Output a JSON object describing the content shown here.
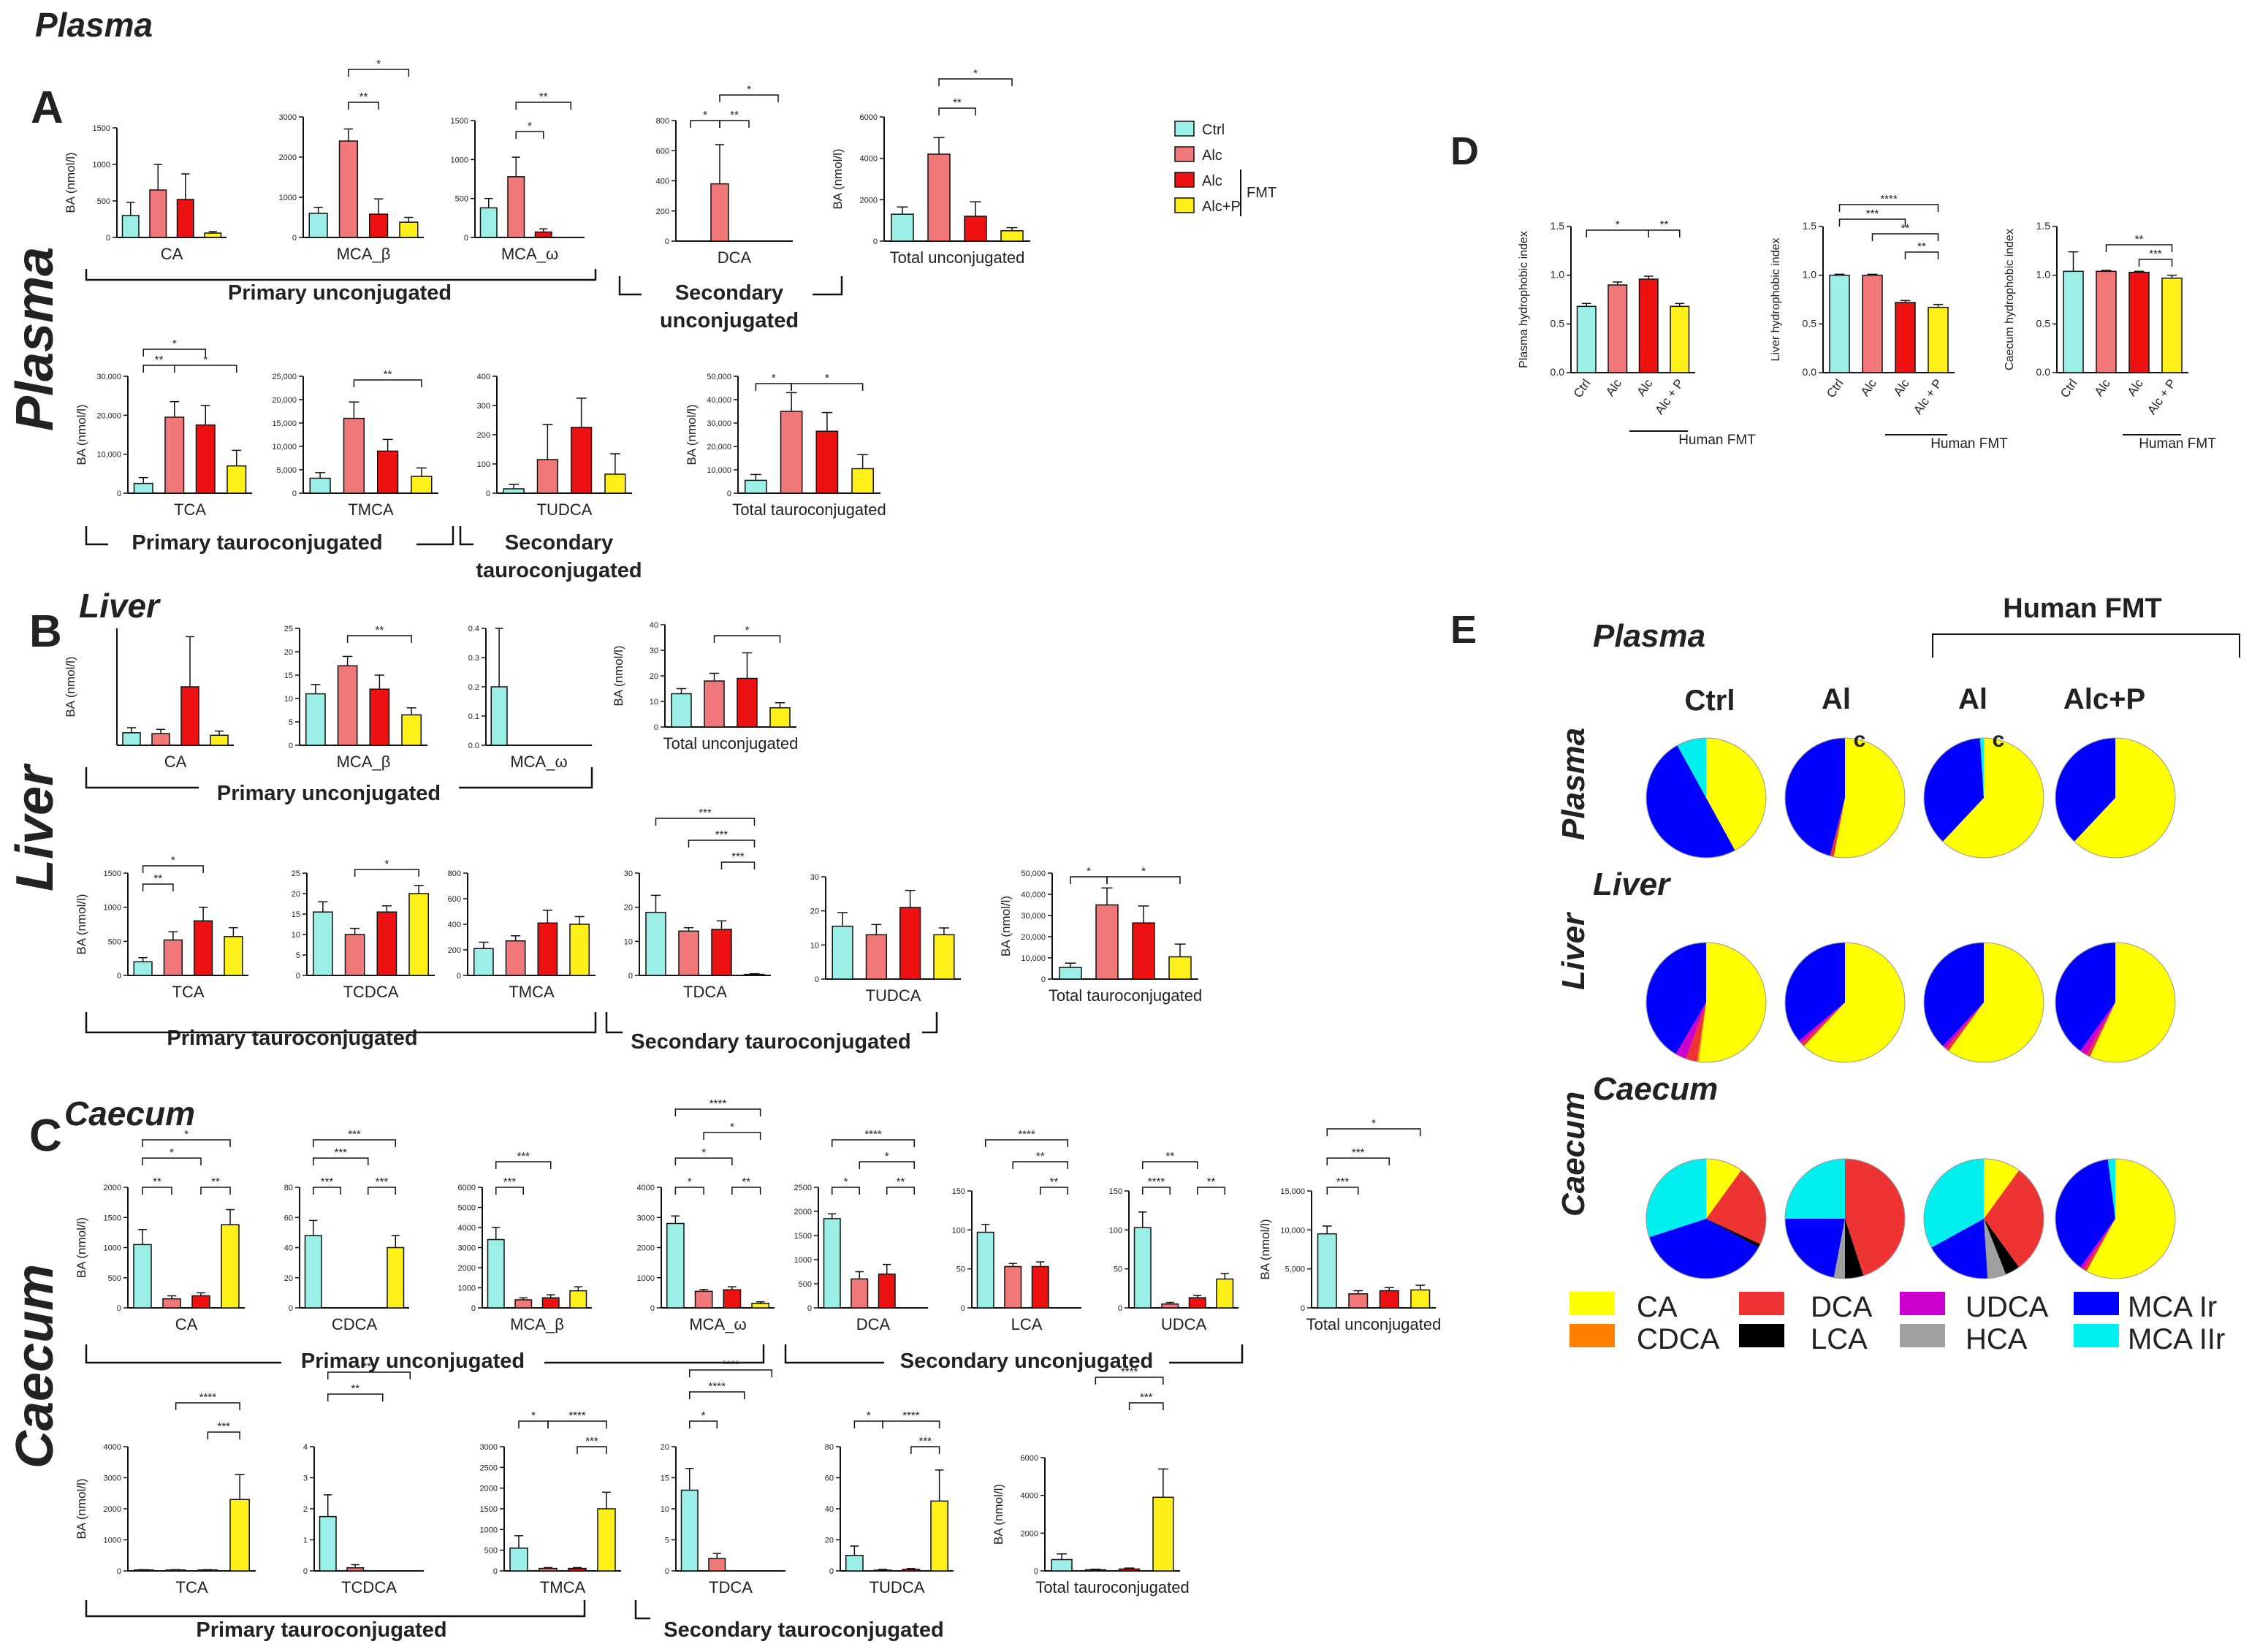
{
  "colors": {
    "Ctrl": "#9BEFE6",
    "Alc": "#F07878",
    "AlcFMT": "#EE1111",
    "AlcP": "#FFF01A",
    "axis": "#111111",
    "CA": "#FFFF00",
    "CDCA": "#FF8000",
    "DCA": "#EE3333",
    "LCA": "#000000",
    "UDCA": "#CC00CC",
    "HCA": "#A0A0A0",
    "MCAIr": "#0000FF",
    "MCAIIr": "#00F0F0"
  },
  "labels": {
    "top_title": "Plasma",
    "panel_A": "A",
    "panel_B": "B",
    "panel_C": "C",
    "panel_D": "D",
    "panel_E": "E",
    "side_plasma": "Plasma",
    "side_liver": "Liver",
    "side_caecum": "Caecum",
    "sub_liver": "Liver",
    "sub_caecum": "Caecum",
    "ylabel": "BA (nmol/l)",
    "legend_ctrl": "Ctrl",
    "legend_alc": "Alc",
    "legend_alc2": "Alc",
    "legend_alcp": "Alc+P",
    "legend_fmt": "FMT",
    "A_grp1": "Primary unconjugated",
    "A_grp2a": "Secondary",
    "A_grp2b": "unconjugated",
    "A_grp3": "Primary tauroconjugated",
    "A_grp4a": "Secondary",
    "A_grp4b": "tauroconjugated",
    "B_grp1": "Primary unconjugated",
    "B_grp2": "Primary tauroconjugated",
    "B_grp3": "Secondary tauroconjugated",
    "C_grp1": "Primary unconjugated",
    "C_grp2": "Secondary unconjugated",
    "C_grp3": "Primary tauroconjugated",
    "C_grp4": "Secondary tauroconjugated",
    "E_header": "Human FMT",
    "E_plasma": "Plasma",
    "E_liver": "Liver",
    "E_caecum": "Caecum",
    "E_side_plasma": "Plasma",
    "E_side_liver": "Liver",
    "E_side_caecum": "Caecum",
    "E_col_ctrl": "Ctrl",
    "E_col_al1": "Al",
    "E_col_al2": "Al",
    "E_col_alcp": "Alc+P",
    "E_c1": "c",
    "E_c2": "c",
    "D_fmt1": "Human FMT",
    "D_fmt2": "Human FMT",
    "D_fmt3": "Human FMT",
    "leg_CA": "CA",
    "leg_CDCA": "CDCA",
    "leg_DCA": "DCA",
    "leg_LCA": "LCA",
    "leg_UDCA": "UDCA",
    "leg_HCA": "HCA",
    "leg_MCAIr": "MCA Ir",
    "leg_MCAIIr": "MCA IIr"
  },
  "chart_data": {
    "type": "bar",
    "groups": [
      "Ctrl",
      "Alc",
      "Alc (FMT)",
      "Alc+P (FMT)"
    ],
    "panel_A_plasma": [
      {
        "title": "CA",
        "yticks": [
          "0",
          "500",
          "1000",
          "1500"
        ],
        "ymax": 1500,
        "values": [
          300,
          650,
          520,
          60
        ],
        "errors": [
          180,
          350,
          350,
          20
        ]
      },
      {
        "title": "MCA_β",
        "yticks": [
          "0",
          "1000",
          "2000",
          "3000"
        ],
        "ymax": 3000,
        "values": [
          600,
          2400,
          580,
          380
        ],
        "errors": [
          150,
          300,
          380,
          120
        ]
      },
      {
        "title": "MCA_ω",
        "yticks": [
          "0",
          "500",
          "1000",
          "1500"
        ],
        "ymax": 1500,
        "values": [
          380,
          780,
          70,
          0
        ],
        "errors": [
          120,
          250,
          40,
          0
        ]
      },
      {
        "title": "DCA",
        "yticks": [
          "0",
          "200",
          "400",
          "600",
          "800"
        ],
        "ymax": 800,
        "values": [
          0,
          380,
          0,
          0
        ],
        "errors": [
          0,
          260,
          0,
          0
        ]
      },
      {
        "title": "Total unconjugated",
        "yticks": [
          "0",
          "2000",
          "4000",
          "6000"
        ],
        "ymax": 6000,
        "values": [
          1300,
          4200,
          1200,
          500
        ],
        "errors": [
          350,
          800,
          700,
          150
        ]
      },
      {
        "title": "TCA",
        "yticks": [
          "0",
          "10,000",
          "20,000",
          "30,000"
        ],
        "ymax": 30000,
        "values": [
          2500,
          19500,
          17500,
          7000
        ],
        "errors": [
          1500,
          4000,
          5000,
          4000
        ]
      },
      {
        "title": "TMCA",
        "yticks": [
          "0",
          "5,000",
          "10,000",
          "15,000",
          "20,000",
          "25,000"
        ],
        "ymax": 25000,
        "values": [
          3200,
          16000,
          9000,
          3600
        ],
        "errors": [
          1200,
          3500,
          2500,
          1800
        ]
      },
      {
        "title": "TUDCA",
        "yticks": [
          "0",
          "100",
          "200",
          "300",
          "400"
        ],
        "ymax": 400,
        "values": [
          15,
          115,
          225,
          65
        ],
        "errors": [
          15,
          120,
          100,
          70
        ]
      },
      {
        "title": "Total tauroconjugated",
        "yticks": [
          "0",
          "10,000",
          "20,000",
          "30,000",
          "40,000",
          "50,000"
        ],
        "ymax": 50000,
        "values": [
          5500,
          35000,
          26500,
          10500
        ],
        "errors": [
          2500,
          8000,
          8000,
          6000
        ]
      }
    ],
    "panel_B_liver": [
      {
        "title": "CA",
        "yticks": [],
        "ymax": 14,
        "values": [
          1.5,
          1.4,
          7,
          1.2
        ],
        "errors": [
          0.6,
          0.5,
          6,
          0.5
        ]
      },
      {
        "title": "MCA_β",
        "yticks": [
          "0",
          "5",
          "10",
          "15",
          "20",
          "25"
        ],
        "ymax": 25,
        "values": [
          11,
          17,
          12,
          6.5
        ],
        "errors": [
          2,
          2,
          3,
          1.5
        ]
      },
      {
        "title": "MCA_ω",
        "yticks": [
          "0.0",
          "0.1",
          "0.2",
          "0.3",
          "0.4"
        ],
        "ymax": 0.4,
        "values": [
          0.2,
          0,
          0,
          0
        ],
        "errors": [
          0.2,
          0,
          0,
          0
        ]
      },
      {
        "title": "Total unconjugated",
        "yticks": [
          "0",
          "10",
          "20",
          "30",
          "40"
        ],
        "ymax": 40,
        "values": [
          13,
          18,
          19,
          7.5
        ],
        "errors": [
          2,
          3,
          10,
          2
        ]
      },
      {
        "title": "TCA",
        "yticks": [
          "0",
          "500",
          "1000",
          "1500"
        ],
        "ymax": 1500,
        "values": [
          200,
          520,
          800,
          570
        ],
        "errors": [
          60,
          120,
          200,
          130
        ]
      },
      {
        "title": "TCDCA",
        "yticks": [
          "0",
          "5",
          "10",
          "15",
          "20",
          "25"
        ],
        "ymax": 25,
        "values": [
          15.5,
          10,
          15.5,
          20
        ],
        "errors": [
          2.5,
          1.5,
          1.5,
          2
        ]
      },
      {
        "title": "TMCA",
        "yticks": [
          "0",
          "200",
          "400",
          "600",
          "800"
        ],
        "ymax": 800,
        "values": [
          210,
          270,
          410,
          400
        ],
        "errors": [
          50,
          40,
          100,
          60
        ]
      },
      {
        "title": "TDCA",
        "yticks": [
          "0",
          "10",
          "20",
          "30"
        ],
        "ymax": 30,
        "values": [
          18.5,
          13,
          13.5,
          0.3
        ],
        "errors": [
          5,
          1,
          2.5,
          0.2
        ]
      },
      {
        "title": "TUDCA",
        "yticks": [
          "0",
          "10",
          "20",
          "30"
        ],
        "ymax": 30,
        "values": [
          15.5,
          13,
          21,
          13
        ],
        "errors": [
          4,
          3,
          5,
          2
        ]
      },
      {
        "title": "Total tauroconjugated",
        "yticks": [
          "0",
          "10,000",
          "20,000",
          "30,000",
          "40,000",
          "50,000"
        ],
        "ymax": 50000,
        "values": [
          5500,
          35000,
          26500,
          10500
        ],
        "errors": [
          2000,
          8000,
          8000,
          6000
        ]
      }
    ],
    "panel_C_caecum": [
      {
        "title": "CA",
        "yticks": [
          "0",
          "500",
          "1000",
          "1500",
          "2000"
        ],
        "ymax": 2000,
        "values": [
          1050,
          150,
          200,
          1380
        ],
        "errors": [
          250,
          50,
          50,
          250
        ]
      },
      {
        "title": "CDCA",
        "yticks": [
          "0",
          "20",
          "40",
          "60",
          "80"
        ],
        "ymax": 80,
        "values": [
          48,
          0,
          0,
          40
        ],
        "errors": [
          10,
          0,
          0,
          8
        ]
      },
      {
        "title": "MCA_β",
        "yticks": [
          "0",
          "1000",
          "2000",
          "3000",
          "4000",
          "5000",
          "6000"
        ],
        "ymax": 6000,
        "values": [
          3400,
          400,
          500,
          850
        ],
        "errors": [
          600,
          100,
          150,
          200
        ]
      },
      {
        "title": "MCA_ω",
        "yticks": [
          "0",
          "1000",
          "2000",
          "3000",
          "4000"
        ],
        "ymax": 4000,
        "values": [
          2800,
          550,
          600,
          150
        ],
        "errors": [
          250,
          60,
          100,
          50
        ]
      },
      {
        "title": "DCA",
        "yticks": [
          "0",
          "500",
          "1000",
          "1500",
          "2000",
          "2500"
        ],
        "ymax": 2500,
        "values": [
          1850,
          600,
          700,
          0
        ],
        "errors": [
          100,
          150,
          200,
          0
        ]
      },
      {
        "title": "LCA",
        "yticks": [
          "0",
          "50",
          "100",
          "150"
        ],
        "ymax": 150,
        "values": [
          97,
          53,
          53,
          0
        ],
        "errors": [
          10,
          4,
          6,
          0
        ]
      },
      {
        "title": "UDCA",
        "yticks": [
          "0",
          "50",
          "100",
          "150"
        ],
        "ymax": 150,
        "values": [
          103,
          5,
          13,
          37
        ],
        "errors": [
          20,
          2,
          3,
          7
        ]
      },
      {
        "title": "Total unconjugated",
        "yticks": [
          "0",
          "5,000",
          "10,000",
          "15,000"
        ],
        "ymax": 15000,
        "values": [
          9500,
          1800,
          2200,
          2300
        ],
        "errors": [
          1000,
          400,
          400,
          600
        ]
      },
      {
        "title": "TCA",
        "yticks": [
          "0",
          "1000",
          "2000",
          "3000",
          "4000"
        ],
        "ymax": 4000,
        "values": [
          30,
          30,
          30,
          2300
        ],
        "errors": [
          10,
          10,
          10,
          800
        ]
      },
      {
        "title": "TCDCA",
        "yticks": [
          "0",
          "1",
          "2",
          "3",
          "4"
        ],
        "ymax": 4,
        "values": [
          1.75,
          0.1,
          0,
          0
        ],
        "errors": [
          0.7,
          0.1,
          0,
          0
        ]
      },
      {
        "title": "TMCA",
        "yticks": [
          "0",
          "500",
          "1000",
          "1500",
          "2000",
          "2500",
          "3000"
        ],
        "ymax": 3000,
        "values": [
          550,
          60,
          60,
          1500
        ],
        "errors": [
          300,
          20,
          20,
          400
        ]
      },
      {
        "title": "TDCA",
        "yticks": [
          "0",
          "5",
          "10",
          "15",
          "20"
        ],
        "ymax": 20,
        "values": [
          13,
          2,
          0,
          0
        ],
        "errors": [
          3.5,
          0.8,
          0,
          0
        ]
      },
      {
        "title": "TUDCA",
        "yticks": [
          "0",
          "20",
          "40",
          "60",
          "80"
        ],
        "ymax": 80,
        "values": [
          10,
          0.5,
          1,
          45
        ],
        "errors": [
          6,
          0.5,
          0.5,
          20
        ]
      },
      {
        "title": "Total tauroconjugated",
        "yticks": [
          "0",
          "2000",
          "4000",
          "6000"
        ],
        "ymax": 6000,
        "values": [
          600,
          60,
          100,
          3900
        ],
        "errors": [
          300,
          30,
          50,
          1500
        ]
      }
    ],
    "panel_D": [
      {
        "title": "Plasma hydrophobic index",
        "categories": [
          "Ctrl",
          "Alc",
          "Alc",
          "Alc + P"
        ],
        "yticks": [
          "0.0",
          "0.5",
          "1.0",
          "1.5"
        ],
        "ymax": 1.5,
        "values": [
          0.68,
          0.9,
          0.96,
          0.68
        ],
        "errors": [
          0.03,
          0.03,
          0.03,
          0.03
        ]
      },
      {
        "title": "Liver hydrophobic index",
        "categories": [
          "Ctrl",
          "Alc",
          "Alc",
          "Alc + P"
        ],
        "yticks": [
          "0.0",
          "0.5",
          "1.0",
          "1.5"
        ],
        "ymax": 1.5,
        "values": [
          1.0,
          1.0,
          0.72,
          0.67
        ],
        "errors": [
          0.01,
          0.01,
          0.02,
          0.03
        ]
      },
      {
        "title": "Caecum hydrophobic index",
        "categories": [
          "Ctrl",
          "Alc",
          "Alc",
          "Alc + P"
        ],
        "yticks": [
          "0.0",
          "0.5",
          "1.0",
          "1.5"
        ],
        "ymax": 1.5,
        "values": [
          1.04,
          1.04,
          1.03,
          0.97
        ],
        "errors": [
          0.2,
          0.01,
          0.01,
          0.03
        ]
      }
    ],
    "panel_E_pie": {
      "order": [
        "CA",
        "CDCA",
        "DCA",
        "LCA",
        "UDCA",
        "HCA",
        "MCA Ir",
        "MCA IIr"
      ],
      "columns": [
        "Ctrl",
        "Alc",
        "Alc (FMT)",
        "Alc+P (FMT)"
      ],
      "plasma": [
        [
          42,
          0,
          0,
          0,
          0,
          0,
          50,
          8
        ],
        [
          53,
          0,
          1,
          0,
          0,
          0,
          46,
          0
        ],
        [
          62,
          0,
          0,
          0,
          0,
          0,
          37,
          1
        ],
        [
          62,
          0,
          0,
          0,
          0,
          0,
          38,
          0
        ]
      ],
      "liver": [
        [
          52,
          0.5,
          3,
          0,
          3,
          0,
          41.5,
          0
        ],
        [
          62,
          0,
          1,
          0,
          1,
          0,
          36,
          0
        ],
        [
          60,
          0,
          1,
          0,
          1,
          0,
          38,
          0
        ],
        [
          57,
          0,
          1,
          0,
          2,
          0,
          40,
          0
        ]
      ],
      "caecum": [
        [
          10,
          0,
          22,
          1,
          0,
          0,
          37,
          30
        ],
        [
          0,
          0,
          45,
          5,
          0,
          3,
          22,
          25
        ],
        [
          10,
          0,
          30,
          4,
          0,
          5,
          18,
          33
        ],
        [
          58,
          0,
          1,
          0,
          1,
          0,
          38,
          2
        ]
      ]
    }
  }
}
